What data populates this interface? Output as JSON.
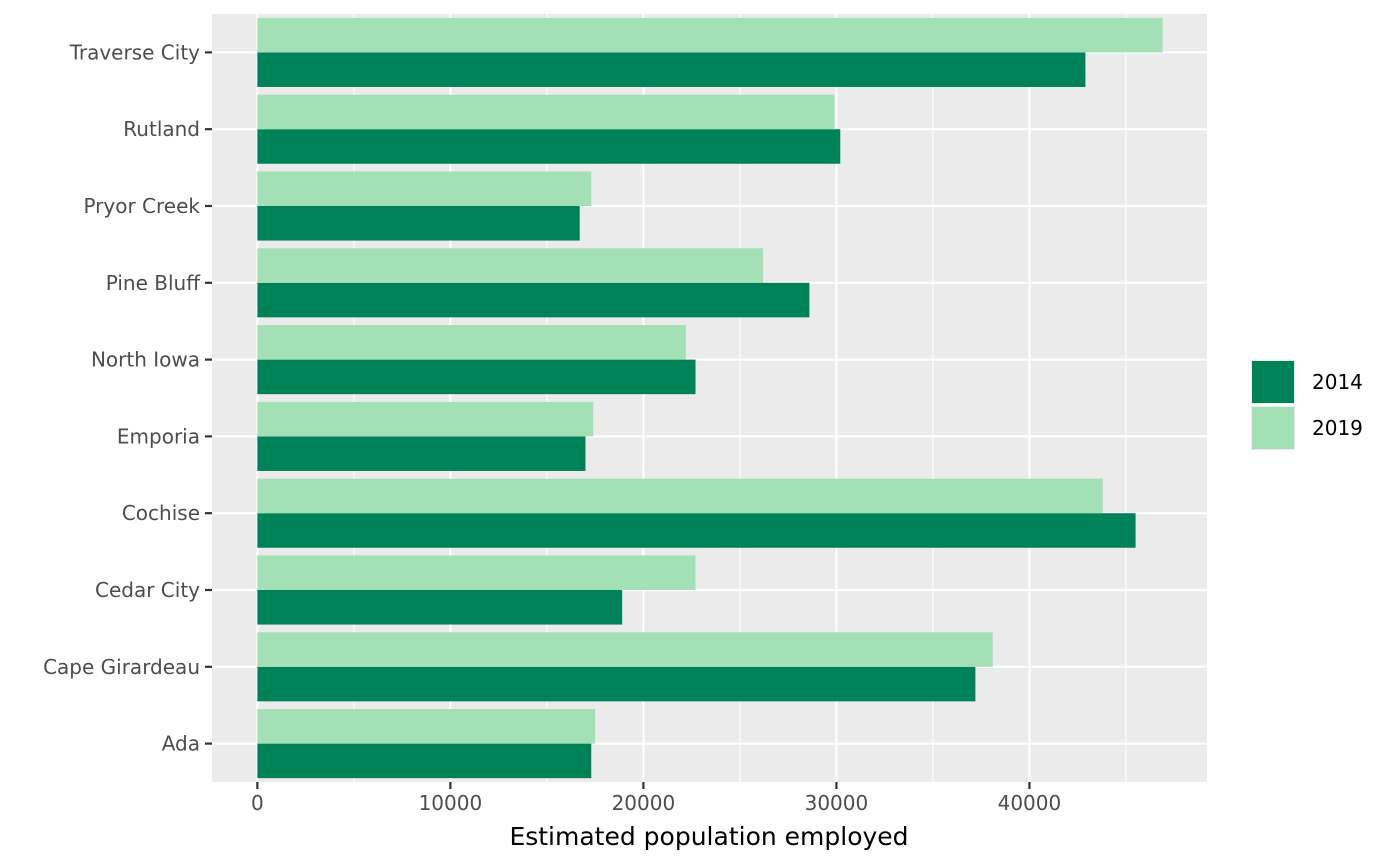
{
  "chart_data": {
    "type": "bar",
    "orientation": "horizontal",
    "categories": [
      "Ada",
      "Cape Girardeau",
      "Cedar City",
      "Cochise",
      "Emporia",
      "North Iowa",
      "Pine Bluff",
      "Pryor Creek",
      "Rutland",
      "Traverse City"
    ],
    "series": [
      {
        "name": "2014",
        "color": "#008259",
        "values": [
          17300,
          37200,
          18900,
          45500,
          17000,
          22700,
          28600,
          16700,
          30200,
          42900
        ]
      },
      {
        "name": "2019",
        "color": "#a3e0b5",
        "values": [
          17500,
          38100,
          22700,
          43800,
          17400,
          22200,
          26200,
          17300,
          29900,
          46900
        ]
      }
    ],
    "xlabel": "Estimated population employed",
    "ylabel": "",
    "xlim": [
      -2350,
      49200
    ],
    "x_ticks": [
      0,
      10000,
      20000,
      30000,
      40000
    ],
    "x_tick_labels": [
      "0",
      "10000",
      "20000",
      "30000",
      "40000"
    ],
    "grid": true,
    "legend_position": "right",
    "panel_background": "#ebebeb",
    "grid_color": "#ffffff"
  }
}
